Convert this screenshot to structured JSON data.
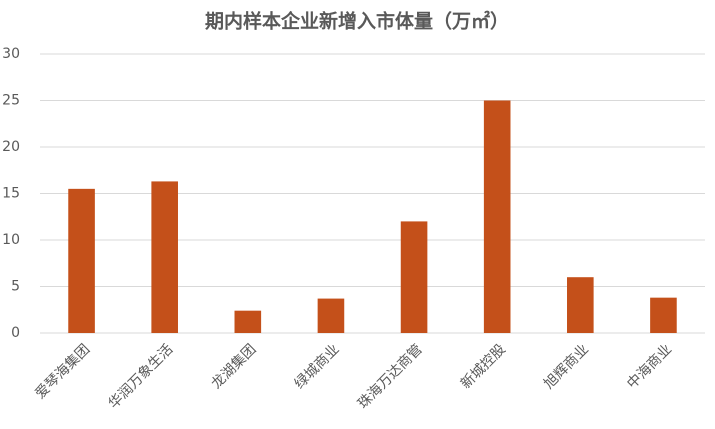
{
  "chart_data": {
    "type": "bar",
    "title": "期内样本企业新增入市体量（万㎡）",
    "categories": [
      "爱琴海集团",
      "华润万象生活",
      "龙湖集团",
      "绿城商业",
      "珠海万达商管",
      "新城控股",
      "旭辉商业",
      "中海商业"
    ],
    "values": [
      15.5,
      16.3,
      2.4,
      3.7,
      12,
      25,
      6,
      3.8
    ],
    "color": "#c4501a",
    "ylim": [
      0,
      30
    ],
    "yticks": [
      0,
      5,
      10,
      15,
      20,
      25,
      30
    ],
    "grid": true
  }
}
